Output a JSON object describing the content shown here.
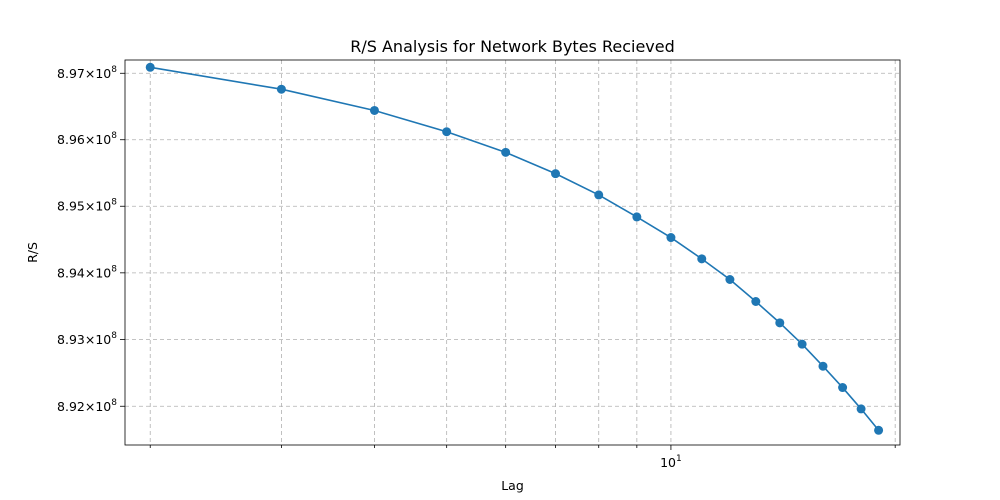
{
  "chart_data": {
    "type": "line",
    "title": "R/S Analysis for Network Bytes Recieved",
    "xlabel": "Lag",
    "ylabel": "R/S",
    "x_scale": "log",
    "y_scale": "log",
    "xlim": [
      1.85,
      20.3
    ],
    "ylim": [
      891420000,
      897200000
    ],
    "grid": true,
    "x_ticks": [
      {
        "value": 2,
        "label": ""
      },
      {
        "value": 3,
        "label": ""
      },
      {
        "value": 4,
        "label": ""
      },
      {
        "value": 5,
        "label": ""
      },
      {
        "value": 6,
        "label": ""
      },
      {
        "value": 7,
        "label": ""
      },
      {
        "value": 8,
        "label": ""
      },
      {
        "value": 9,
        "label": ""
      },
      {
        "value": 10,
        "label_base": "10",
        "label_exp": "1"
      },
      {
        "value": 20,
        "label": ""
      }
    ],
    "y_ticks": [
      {
        "value": 892000000,
        "label_mantissa": "8.92",
        "label_base": "10",
        "label_exp": "8"
      },
      {
        "value": 893000000,
        "label_mantissa": "8.93",
        "label_base": "10",
        "label_exp": "8"
      },
      {
        "value": 894000000,
        "label_mantissa": "8.94",
        "label_base": "10",
        "label_exp": "8"
      },
      {
        "value": 895000000,
        "label_mantissa": "8.95",
        "label_base": "10",
        "label_exp": "8"
      },
      {
        "value": 896000000,
        "label_mantissa": "8.96",
        "label_base": "10",
        "label_exp": "8"
      },
      {
        "value": 897000000,
        "label_mantissa": "8.97",
        "label_base": "10",
        "label_exp": "8"
      }
    ],
    "series": [
      {
        "color": "#1f77b4",
        "marker": "circle",
        "x": [
          2,
          3,
          4,
          5,
          6,
          7,
          8,
          9,
          10,
          11,
          12,
          13,
          14,
          15,
          16,
          17,
          18,
          19
        ],
        "y": [
          897090000,
          896760000,
          896440000,
          896120000,
          895810000,
          895490000,
          895170000,
          894840000,
          894530000,
          894210000,
          893900000,
          893570000,
          893250000,
          892930000,
          892600000,
          892280000,
          891960000,
          891640000
        ]
      }
    ]
  }
}
